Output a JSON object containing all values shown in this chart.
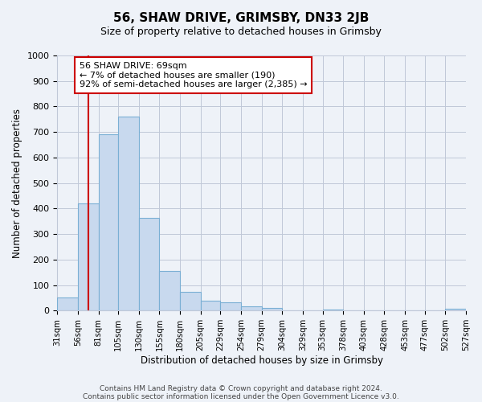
{
  "title": "56, SHAW DRIVE, GRIMSBY, DN33 2JB",
  "subtitle": "Size of property relative to detached houses in Grimsby",
  "xlabel": "Distribution of detached houses by size in Grimsby",
  "ylabel": "Number of detached properties",
  "bin_edges": [
    31,
    56,
    81,
    105,
    130,
    155,
    180,
    205,
    229,
    254,
    279,
    304,
    329,
    353,
    378,
    403,
    428,
    453,
    477,
    502,
    527
  ],
  "bin_heights": [
    50,
    420,
    690,
    760,
    365,
    155,
    75,
    40,
    32,
    18,
    10,
    0,
    0,
    5,
    0,
    0,
    0,
    0,
    0,
    8
  ],
  "bar_color": "#c8d9ee",
  "bar_edge_color": "#7aafd4",
  "property_line_x": 69,
  "property_line_color": "#cc0000",
  "annotation_line1": "56 SHAW DRIVE: 69sqm",
  "annotation_line2": "← 7% of detached houses are smaller (190)",
  "annotation_line3": "92% of semi-detached houses are larger (2,385) →",
  "annotation_box_color": "#ffffff",
  "annotation_box_edge": "#cc0000",
  "ylim": [
    0,
    1000
  ],
  "tick_labels": [
    "31sqm",
    "56sqm",
    "81sqm",
    "105sqm",
    "130sqm",
    "155sqm",
    "180sqm",
    "205sqm",
    "229sqm",
    "254sqm",
    "279sqm",
    "304sqm",
    "329sqm",
    "353sqm",
    "378sqm",
    "403sqm",
    "428sqm",
    "453sqm",
    "477sqm",
    "502sqm",
    "527sqm"
  ],
  "footer_line1": "Contains HM Land Registry data © Crown copyright and database right 2024.",
  "footer_line2": "Contains public sector information licensed under the Open Government Licence v3.0.",
  "background_color": "#eef2f8",
  "grid_color": "#c0c8d8"
}
